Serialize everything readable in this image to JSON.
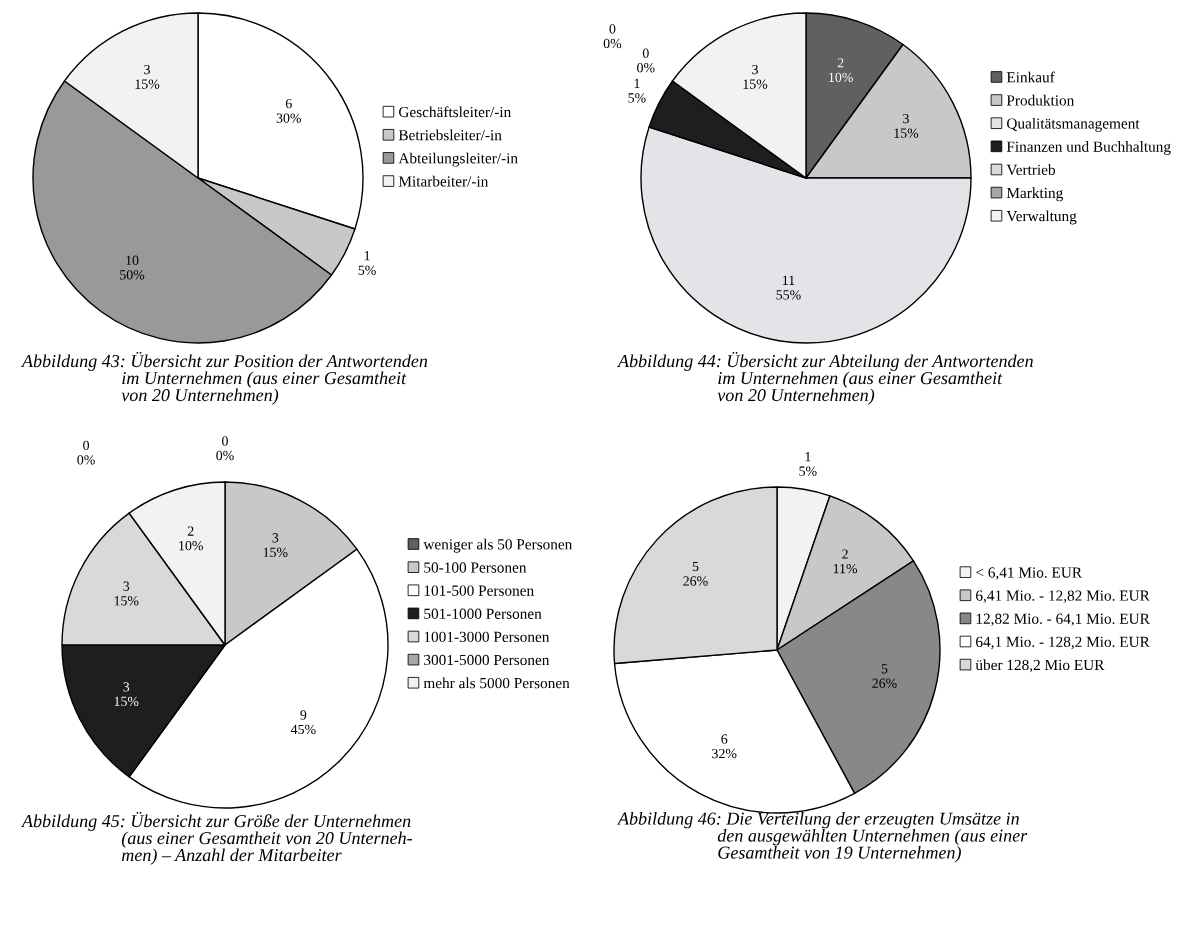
{
  "chart_data": [
    {
      "type": "pie",
      "categories": [
        "Geschäftsleiter/-in",
        "Betriebsleiter/-in",
        "Abteilungsleiter/-in",
        "Mitarbeiter/-in"
      ],
      "values": [
        6,
        1,
        10,
        3
      ],
      "colors": [
        "#ffffff",
        "#c8c8c8",
        "#999999",
        "#f2f2f2"
      ],
      "value_labels": [
        "6\n30%",
        "1\n5%",
        "10\n50%",
        "3\n15%"
      ],
      "legend": "right",
      "annotations": [
        "Abbildung 43: Übersicht zur Position der Antwortenden\n                      im Unternehmen (aus einer Gesamtheit\n                      von 20 Unternehmen)"
      ]
    },
    {
      "type": "pie",
      "categories": [
        "Einkauf",
        "Produktion",
        "Qualitätsmanagement",
        "Finanzen und Buchhaltung",
        "Vertrieb",
        "Markting",
        "Verwaltung"
      ],
      "values": [
        2,
        3,
        11,
        1,
        0,
        0,
        3
      ],
      "colors": [
        "#606060",
        "#c8c8c8",
        "#e6e3e8",
        "#1e1e1e",
        "#d9d9d9",
        "#a6a6a6",
        "#f2f2f2"
      ],
      "value_labels": [
        "2\n10%",
        "3\n15%",
        "11\n55%",
        "1\n5%",
        "0\n0%",
        "0\n0%",
        "3\n15%"
      ],
      "legend": "right",
      "annotations": [
        "Abbildung 44: Übersicht zur Abteilung der Antwortenden\n                      im Unternehmen (aus einer Gesamtheit\n                      von 20 Unternehmen)"
      ]
    },
    {
      "type": "pie",
      "categories": [
        "weniger als 50 Personen",
        "50-100 Personen",
        "101-500 Personen",
        "501-1000 Personen",
        "1001-3000 Personen",
        "3001-5000 Personen",
        "mehr als 5000 Personen"
      ],
      "values": [
        0,
        3,
        9,
        3,
        3,
        0,
        2
      ],
      "colors": [
        "#606060",
        "#c8c8c8",
        "#ffffff",
        "#1e1e1e",
        "#d9d9d9",
        "#a6a6a6",
        "#f2f2f2"
      ],
      "value_labels": [
        "0\n0%",
        "3\n15%",
        "9\n45%",
        "3\n15%",
        "3\n15%",
        "0\n0%",
        "2\n10%"
      ],
      "legend": "right",
      "annotations": [
        "Abbildung 45: Übersicht zur Größe der Unternehmen\n                      (aus einer Gesamtheit von 20 Unterneh-\n                      men) – Anzahl der Mitarbeiter"
      ]
    },
    {
      "type": "pie",
      "categories": [
        "< 6,41 Mio. EUR",
        "6,41 Mio. - 12,82 Mio. EUR",
        "12,82 Mio. - 64,1 Mio. EUR",
        "64,1 Mio. - 128,2 Mio. EUR",
        "über 128,2 Mio EUR"
      ],
      "values": [
        1,
        2,
        5,
        6,
        5
      ],
      "colors": [
        "#f2f2f2",
        "#c8c8c8",
        "#888888",
        "#ffffff",
        "#d9d9d9"
      ],
      "value_labels": [
        "1\n5%",
        "2\n11%",
        "5\n26%",
        "6\n32%",
        "5\n26%"
      ],
      "legend": "right",
      "annotations": [
        "Abbildung 46: Die Verteilung der erzeugten Umsätze in\n                      den ausgewählten Unternehmen (aus einer\n                      Gesamtheit von 19 Unternehmen)"
      ]
    }
  ]
}
